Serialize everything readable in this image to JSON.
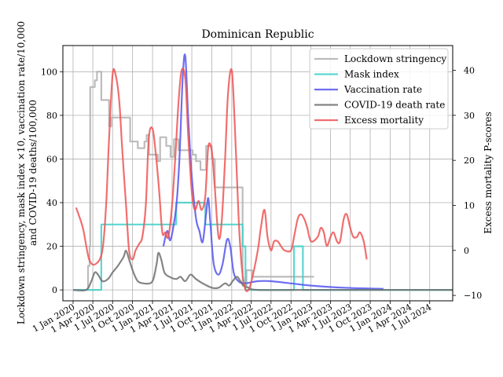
{
  "chart_data": {
    "type": "line",
    "title": "Dominican Republic",
    "ylabel_left": [
      "Lockdown stringency, mask index ×10, vaccination rate/10,000",
      "and COVID-19 deaths/100,000"
    ],
    "ylabel_right": "Excess mortality P-scores",
    "xlabel": "",
    "x_range": [
      "2019-11-15",
      "2024-10-15"
    ],
    "ylim_left": [
      -5,
      112
    ],
    "ylim_right": [
      -11.2,
      45.5
    ],
    "yticks_left": [
      0,
      20,
      40,
      60,
      80,
      100
    ],
    "yticks_right": [
      -10,
      0,
      10,
      20,
      30,
      40
    ],
    "xticks": [
      {
        "date": "2020-01-01",
        "label": "1 Jan 2020"
      },
      {
        "date": "2020-04-01",
        "label": "1 Apr 2020"
      },
      {
        "date": "2020-07-01",
        "label": "1 Jul 2020"
      },
      {
        "date": "2020-10-01",
        "label": "1 Oct 2020"
      },
      {
        "date": "2021-01-01",
        "label": "1 Jan 2021"
      },
      {
        "date": "2021-04-01",
        "label": "1 Apr 2021"
      },
      {
        "date": "2021-07-01",
        "label": "1 Jul 2021"
      },
      {
        "date": "2021-10-01",
        "label": "1 Oct 2021"
      },
      {
        "date": "2022-01-01",
        "label": "1 Jan 2022"
      },
      {
        "date": "2022-04-01",
        "label": "1 Apr 2022"
      },
      {
        "date": "2022-07-01",
        "label": "1 Jul 2022"
      },
      {
        "date": "2022-10-01",
        "label": "1 Oct 2022"
      },
      {
        "date": "2023-01-01",
        "label": "1 Jan 2023"
      },
      {
        "date": "2023-04-01",
        "label": "1 Apr 2023"
      },
      {
        "date": "2023-07-01",
        "label": "1 Jul 2023"
      },
      {
        "date": "2023-10-01",
        "label": "1 Oct 2023"
      },
      {
        "date": "2024-01-01",
        "label": "1 Jan 2024"
      },
      {
        "date": "2024-04-01",
        "label": "1 Apr 2024"
      },
      {
        "date": "2024-07-01",
        "label": "1 Jul 2024"
      }
    ],
    "grid": true,
    "legend_position": "top-right",
    "series": [
      {
        "name": "Lockdown stringency",
        "color": "#b0b0b0",
        "axis": "left",
        "step": true,
        "points": [
          [
            "2020-01-01",
            0
          ],
          [
            "2020-03-10",
            11
          ],
          [
            "2020-03-17",
            20
          ],
          [
            "2020-03-20",
            93
          ],
          [
            "2020-04-10",
            96
          ],
          [
            "2020-04-20",
            100
          ],
          [
            "2020-05-10",
            87
          ],
          [
            "2020-06-15",
            75
          ],
          [
            "2020-06-25",
            79
          ],
          [
            "2020-09-20",
            68
          ],
          [
            "2020-10-25",
            65
          ],
          [
            "2020-11-25",
            68
          ],
          [
            "2020-12-05",
            71
          ],
          [
            "2020-12-15",
            62
          ],
          [
            "2021-01-25",
            59
          ],
          [
            "2021-02-05",
            70
          ],
          [
            "2021-03-05",
            66
          ],
          [
            "2021-03-25",
            61
          ],
          [
            "2021-04-10",
            69
          ],
          [
            "2021-05-01",
            64
          ],
          [
            "2021-07-05",
            62
          ],
          [
            "2021-07-20",
            59
          ],
          [
            "2021-08-10",
            55
          ],
          [
            "2021-09-05",
            66
          ],
          [
            "2021-10-01",
            60
          ],
          [
            "2021-10-15",
            47
          ],
          [
            "2022-02-20",
            2
          ],
          [
            "2022-03-10",
            9
          ],
          [
            "2022-04-05",
            6
          ],
          [
            "2023-01-15",
            6
          ]
        ]
      },
      {
        "name": "Mask index",
        "color": "#40d0c8",
        "axis": "left",
        "step": true,
        "points": [
          [
            "2020-01-01",
            0
          ],
          [
            "2020-05-10",
            30
          ],
          [
            "2021-04-20",
            40
          ],
          [
            "2021-09-01",
            30
          ],
          [
            "2022-02-20",
            20
          ],
          [
            "2022-03-05",
            0
          ],
          [
            "2022-10-15",
            20
          ],
          [
            "2022-11-25",
            0
          ],
          [
            "2024-10-15",
            0
          ]
        ]
      },
      {
        "name": "Vaccination rate",
        "color": "#5555ee",
        "axis": "left",
        "step": false,
        "points": [
          [
            "2021-02-20",
            20
          ],
          [
            "2021-03-10",
            27
          ],
          [
            "2021-03-25",
            23
          ],
          [
            "2021-04-20",
            38
          ],
          [
            "2021-05-05",
            60
          ],
          [
            "2021-05-20",
            97
          ],
          [
            "2021-06-01",
            107
          ],
          [
            "2021-06-15",
            78
          ],
          [
            "2021-07-01",
            52
          ],
          [
            "2021-07-20",
            33
          ],
          [
            "2021-08-05",
            27
          ],
          [
            "2021-08-20",
            22
          ],
          [
            "2021-09-05",
            35
          ],
          [
            "2021-09-15",
            42
          ],
          [
            "2021-09-25",
            30
          ],
          [
            "2021-10-10",
            12
          ],
          [
            "2021-11-01",
            7
          ],
          [
            "2021-11-20",
            12
          ],
          [
            "2021-12-10",
            23
          ],
          [
            "2021-12-25",
            20
          ],
          [
            "2022-01-10",
            8
          ],
          [
            "2022-02-01",
            4
          ],
          [
            "2022-03-01",
            3
          ],
          [
            "2022-05-01",
            4
          ],
          [
            "2022-07-01",
            4
          ],
          [
            "2022-10-01",
            3
          ],
          [
            "2023-01-01",
            2
          ],
          [
            "2023-06-01",
            1
          ],
          [
            "2023-12-01",
            0.5
          ]
        ]
      },
      {
        "name": "COVID-19 death rate",
        "color": "#707070",
        "axis": "left",
        "step": false,
        "points": [
          [
            "2020-01-01",
            0
          ],
          [
            "2020-03-01",
            0
          ],
          [
            "2020-03-25",
            4
          ],
          [
            "2020-04-10",
            8
          ],
          [
            "2020-04-25",
            7
          ],
          [
            "2020-05-15",
            4
          ],
          [
            "2020-06-10",
            5
          ],
          [
            "2020-07-01",
            8
          ],
          [
            "2020-07-25",
            11
          ],
          [
            "2020-08-20",
            15
          ],
          [
            "2020-09-01",
            18
          ],
          [
            "2020-09-15",
            14
          ],
          [
            "2020-10-05",
            8
          ],
          [
            "2020-10-25",
            4
          ],
          [
            "2020-11-20",
            3
          ],
          [
            "2020-12-20",
            3
          ],
          [
            "2021-01-05",
            5
          ],
          [
            "2021-01-20",
            12
          ],
          [
            "2021-01-28",
            17
          ],
          [
            "2021-02-10",
            14
          ],
          [
            "2021-02-25",
            8
          ],
          [
            "2021-03-20",
            6
          ],
          [
            "2021-04-20",
            5
          ],
          [
            "2021-05-10",
            6
          ],
          [
            "2021-06-01",
            4
          ],
          [
            "2021-06-25",
            7
          ],
          [
            "2021-07-20",
            5
          ],
          [
            "2021-08-20",
            3
          ],
          [
            "2021-10-01",
            1
          ],
          [
            "2021-11-01",
            1
          ],
          [
            "2021-12-01",
            3
          ],
          [
            "2021-12-20",
            2
          ],
          [
            "2022-01-05",
            4
          ],
          [
            "2022-01-25",
            6
          ],
          [
            "2022-02-10",
            4
          ],
          [
            "2022-02-25",
            2
          ],
          [
            "2022-03-20",
            1
          ],
          [
            "2022-05-01",
            0
          ],
          [
            "2023-01-01",
            0
          ],
          [
            "2024-10-15",
            0
          ]
        ]
      },
      {
        "name": "Excess mortality",
        "color": "#ee5555",
        "axis": "right",
        "step": false,
        "points": [
          [
            "2020-01-15",
            9.5
          ],
          [
            "2020-02-15",
            5
          ],
          [
            "2020-03-15",
            -2
          ],
          [
            "2020-04-15",
            -3
          ],
          [
            "2020-05-15",
            0
          ],
          [
            "2020-06-01",
            10
          ],
          [
            "2020-06-15",
            25
          ],
          [
            "2020-07-01",
            39
          ],
          [
            "2020-07-15",
            39
          ],
          [
            "2020-08-01",
            33
          ],
          [
            "2020-08-15",
            22
          ],
          [
            "2020-09-01",
            10
          ],
          [
            "2020-09-15",
            0
          ],
          [
            "2020-10-01",
            -2
          ],
          [
            "2020-10-15",
            0
          ],
          [
            "2020-11-01",
            1.5
          ],
          [
            "2020-11-15",
            3
          ],
          [
            "2020-12-01",
            10
          ],
          [
            "2020-12-15",
            25
          ],
          [
            "2021-01-01",
            27
          ],
          [
            "2021-01-15",
            22
          ],
          [
            "2021-02-01",
            13
          ],
          [
            "2021-02-15",
            4
          ],
          [
            "2021-03-01",
            4
          ],
          [
            "2021-03-15",
            3
          ],
          [
            "2021-04-01",
            10
          ],
          [
            "2021-04-15",
            20
          ],
          [
            "2021-05-01",
            33
          ],
          [
            "2021-05-15",
            40
          ],
          [
            "2021-06-01",
            38
          ],
          [
            "2021-06-15",
            25
          ],
          [
            "2021-07-01",
            13
          ],
          [
            "2021-07-15",
            9
          ],
          [
            "2021-08-01",
            11
          ],
          [
            "2021-08-15",
            9
          ],
          [
            "2021-09-01",
            12
          ],
          [
            "2021-09-15",
            23
          ],
          [
            "2021-10-01",
            22
          ],
          [
            "2021-10-15",
            14
          ],
          [
            "2021-11-01",
            3
          ],
          [
            "2021-11-15",
            6
          ],
          [
            "2021-12-01",
            20
          ],
          [
            "2021-12-15",
            35
          ],
          [
            "2022-01-01",
            40
          ],
          [
            "2022-01-15",
            28
          ],
          [
            "2022-02-01",
            8
          ],
          [
            "2022-02-15",
            -3
          ],
          [
            "2022-03-01",
            -8
          ],
          [
            "2022-03-15",
            -9
          ],
          [
            "2022-04-01",
            -7
          ],
          [
            "2022-05-01",
            0
          ],
          [
            "2022-05-15",
            5
          ],
          [
            "2022-06-01",
            9
          ],
          [
            "2022-06-15",
            3
          ],
          [
            "2022-07-01",
            0
          ],
          [
            "2022-07-15",
            2
          ],
          [
            "2022-08-01",
            2
          ],
          [
            "2022-08-15",
            1
          ],
          [
            "2022-09-01",
            0
          ],
          [
            "2022-10-01",
            0
          ],
          [
            "2022-10-15",
            3
          ],
          [
            "2022-11-01",
            7
          ],
          [
            "2022-11-15",
            8
          ],
          [
            "2022-12-01",
            7
          ],
          [
            "2022-12-15",
            5
          ],
          [
            "2023-01-01",
            2
          ],
          [
            "2023-02-01",
            3
          ],
          [
            "2023-02-15",
            5
          ],
          [
            "2023-03-01",
            4
          ],
          [
            "2023-03-15",
            1
          ],
          [
            "2023-04-01",
            3
          ],
          [
            "2023-04-15",
            4
          ],
          [
            "2023-05-01",
            2
          ],
          [
            "2023-05-15",
            2
          ],
          [
            "2023-06-01",
            7
          ],
          [
            "2023-06-15",
            8
          ],
          [
            "2023-07-01",
            5
          ],
          [
            "2023-07-15",
            3
          ],
          [
            "2023-08-01",
            3
          ],
          [
            "2023-08-15",
            4
          ],
          [
            "2023-09-01",
            2
          ],
          [
            "2023-09-15",
            -2
          ]
        ]
      }
    ]
  }
}
